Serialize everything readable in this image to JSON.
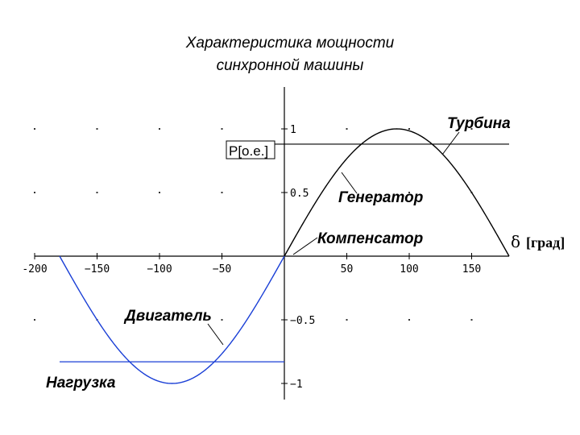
{
  "title": {
    "line1": "Характеристика мощности",
    "line2": "синхронной машины"
  },
  "annotations": {
    "turbine": "Турбина",
    "generator": "Генератор",
    "compensator": "Компенсатор",
    "motor": "Двигатель",
    "load": "Нагрузка",
    "p_label": "P[o.e.]",
    "delta_symbol": "δ",
    "delta_unit": "[град]"
  },
  "chart_data": {
    "type": "line",
    "title": "Характеристика мощности синхронной машины",
    "xlabel": "δ [град]",
    "ylabel": "P[o.e.]",
    "xlim": [
      -200,
      200
    ],
    "ylim": [
      -1.1,
      1.3
    ],
    "x_ticks": [
      -200,
      -150,
      -100,
      -50,
      50,
      100,
      150
    ],
    "x_tick_labels": [
      "-200",
      "−150",
      "−100",
      "−50",
      "50",
      "100",
      "150"
    ],
    "y_ticks": [
      1,
      0.5,
      -0.5,
      -1
    ],
    "y_tick_labels": [
      "1",
      "0.5",
      "−0.5",
      "−1"
    ],
    "grid": "dots",
    "series": [
      {
        "function": "sin(δ)",
        "x_range": [
          -180,
          0
        ],
        "color": "#1a3fd6"
      },
      {
        "function": "sin(δ)",
        "x_range": [
          0,
          180
        ],
        "color": "#000000"
      }
    ],
    "horizontal_lines": [
      {
        "y": 0.88,
        "x_range": [
          -10,
          180
        ],
        "color": "#000000"
      },
      {
        "y": -0.83,
        "x_range": [
          -180,
          0
        ],
        "color": "#1a3fd6"
      }
    ]
  }
}
